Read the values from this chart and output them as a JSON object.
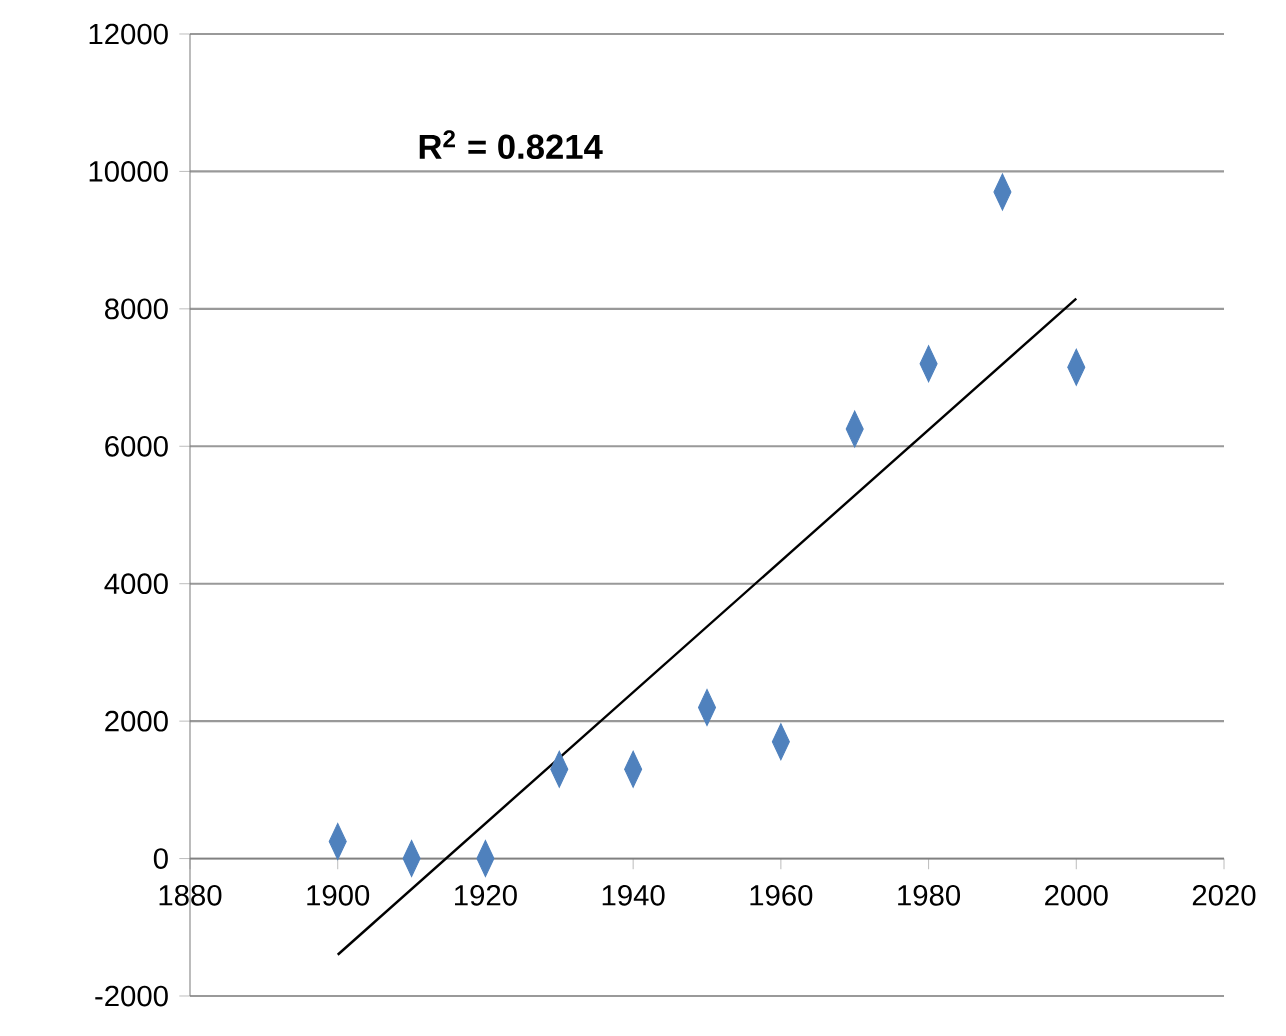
{
  "chart_data": {
    "type": "scatter",
    "annotations": [
      "R$^{2}$ = 0.8214"
    ],
    "xlim": [
      1880,
      2020
    ],
    "xticks": [
      1880,
      1900,
      1920,
      1940,
      1960,
      1980,
      2000,
      2020
    ],
    "ylim": [
      -2000,
      12000
    ],
    "yticks": [
      -2000,
      0,
      2000,
      4000,
      6000,
      8000,
      10000,
      12000
    ],
    "grid": "y",
    "marker": "diamond",
    "series": [
      {
        "color": "#4f81bd",
        "x": [
          1900,
          1910,
          1920,
          1930,
          1940,
          1950,
          1960,
          1970,
          1980,
          1990,
          2000
        ],
        "values": [
          250,
          0,
          0,
          1300,
          1300,
          2200,
          1700,
          6250,
          7200,
          9700,
          7150
        ]
      },
      {
        "type": "line",
        "color": "#000000",
        "marker": "none",
        "line_style": "solid",
        "x": [
          1900,
          2000
        ],
        "values": [
          -1400,
          8150
        ]
      }
    ]
  }
}
